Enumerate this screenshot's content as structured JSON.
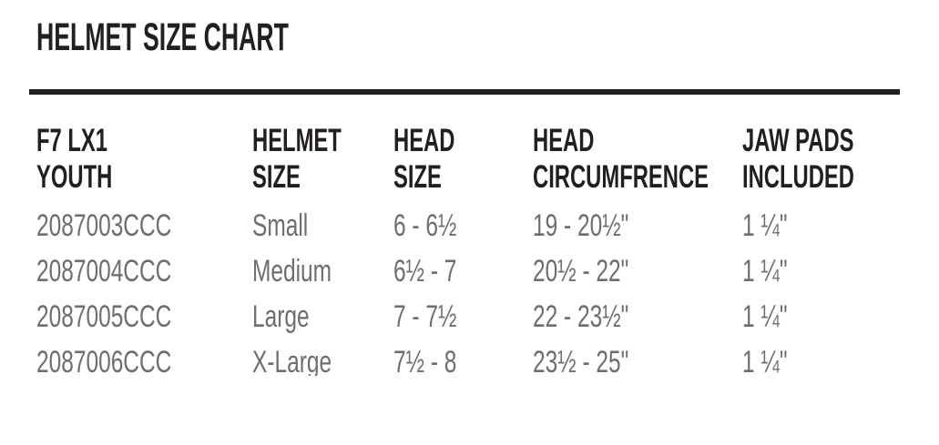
{
  "page": {
    "title": "HELMET SIZE CHART"
  },
  "colors": {
    "heading_text": "#231f20",
    "body_text": "#6d6e71",
    "rule": "#231f20",
    "background": "#ffffff"
  },
  "table": {
    "columns": [
      {
        "id": "part-number",
        "line1": "F7 LX1",
        "line2": "YOUTH"
      },
      {
        "id": "helmet-size",
        "line1": "HELMET",
        "line2": "SIZE"
      },
      {
        "id": "head-size",
        "line1": "HEAD",
        "line2": "SIZE"
      },
      {
        "id": "head-circumference",
        "line1": "HEAD",
        "line2": "CIRCUMFRENCE"
      },
      {
        "id": "jaw-pads",
        "line1": "JAW PADS",
        "line2": "INCLUDED"
      }
    ],
    "rows": [
      {
        "part_number": "2087003CCC",
        "helmet_size": "Small",
        "head_size": "6 - 6½",
        "head_circumference": "19 - 20½\"",
        "jaw_pads": "1 ¼\""
      },
      {
        "part_number": "2087004CCC",
        "helmet_size": "Medium",
        "head_size": "6½ - 7",
        "head_circumference": "20½ - 22\"",
        "jaw_pads": "1 ¼\""
      },
      {
        "part_number": "2087005CCC",
        "helmet_size": "Large",
        "head_size": "7 - 7½",
        "head_circumference": "22 - 23½\"",
        "jaw_pads": "1 ¼\""
      },
      {
        "part_number": "2087006CCC",
        "helmet_size": "X-Large",
        "head_size": "7½ - 8",
        "head_circumference": "23½ - 25\"",
        "jaw_pads": "1 ¼\""
      }
    ]
  }
}
